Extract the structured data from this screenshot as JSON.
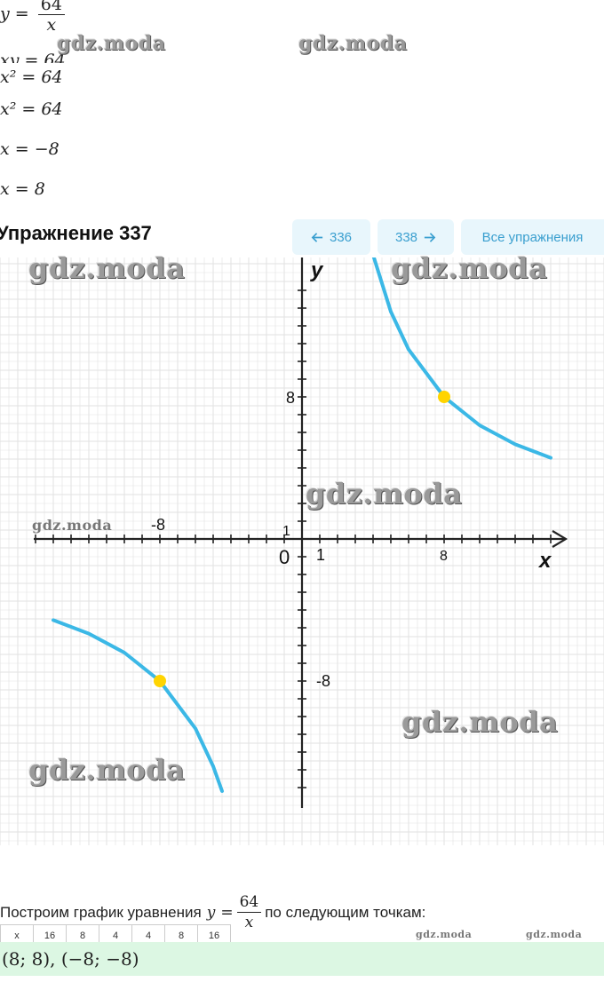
{
  "solution": {
    "line1_y": "y",
    "line1_eq": "=",
    "line1_num": "64",
    "line1_den": "x",
    "line2": "xy = 64",
    "line3": "x² = 64",
    "line4": "x² = 64",
    "line5": "x = −8",
    "line6": "x = 8"
  },
  "watermark_text": "gdz.moda",
  "exercise": {
    "title": "Упражнение 337",
    "prev_label": "336",
    "next_label": "338",
    "all_label": "Все упражнения"
  },
  "chart_data": {
    "type": "line",
    "title": "",
    "xlabel": "x",
    "ylabel": "y",
    "xlim": [
      -15,
      15
    ],
    "ylim": [
      -15,
      15
    ],
    "x_ticks_labeled": [
      "-8",
      "1",
      "8"
    ],
    "y_ticks_labeled": [
      "8",
      "1",
      "-8"
    ],
    "origin_label": "0",
    "grid": true,
    "series": [
      {
        "points": [
          [
            4.0,
            16.0
          ],
          [
            5,
            12.8
          ],
          [
            6,
            10.67
          ],
          [
            8,
            8
          ],
          [
            10,
            6.4
          ],
          [
            12,
            5.33
          ],
          [
            14,
            4.57
          ]
        ]
      },
      {
        "points": [
          [
            -14,
            -4.57
          ],
          [
            -12,
            -5.33
          ],
          [
            -10,
            -6.4
          ],
          [
            -8,
            -8
          ],
          [
            -6,
            -10.67
          ],
          [
            -5,
            -12.8
          ],
          [
            -4.5,
            -14.2
          ]
        ]
      }
    ],
    "highlight_points": [
      [
        8,
        8
      ],
      [
        -8,
        -8
      ]
    ],
    "colors": {
      "curve": "#3bb8e6",
      "point": "#ffd400",
      "grid": "#e2e2e2",
      "axis": "#222222"
    }
  },
  "bottom": {
    "text_before": "Построим график уравнения",
    "eq_y": "y",
    "eq_eq": "=",
    "eq_num": "64",
    "eq_den": "x",
    "text_after": "по следующим точкам:",
    "table_cells": [
      "x",
      "16",
      "8",
      "4",
      "4",
      "8",
      "16"
    ]
  },
  "answer": "(8; 8),  (−8; −8)"
}
